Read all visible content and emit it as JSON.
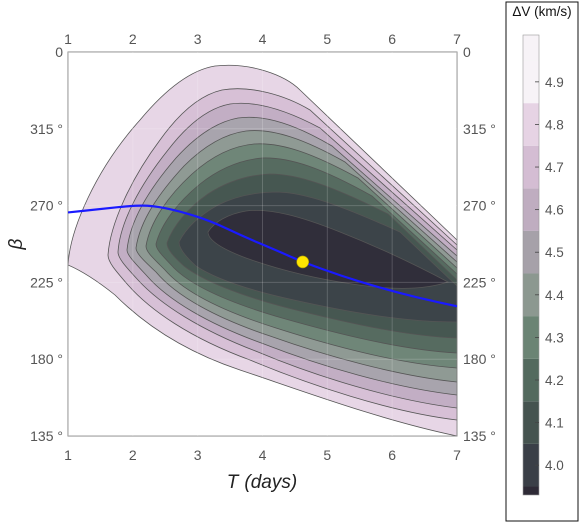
{
  "chart_data": {
    "type": "contour",
    "xlabel_symbol": "T",
    "xlabel_unit": "(days)",
    "ylabel": "β",
    "x_ticks": [
      "1",
      "2",
      "3",
      "4",
      "5",
      "6",
      "7"
    ],
    "y_ticks": [
      "135 °",
      "180 °",
      "225 °",
      "270 °",
      "315 °",
      "0"
    ],
    "xlim": [
      1,
      7
    ],
    "ylim": [
      135,
      360
    ],
    "colorbar": {
      "title": "ΔV (km/s)",
      "ticks": [
        "4.0",
        "4.1",
        "4.2",
        "4.3",
        "4.4",
        "4.5",
        "4.6",
        "4.7",
        "4.8",
        "4.9"
      ],
      "range": [
        3.93,
        5.01
      ]
    },
    "contour_levels": [
      4.0,
      4.1,
      4.2,
      4.3,
      4.4,
      4.5,
      4.6,
      4.7,
      4.8,
      4.9
    ],
    "optimum_point": {
      "x": 4.62,
      "y": 237,
      "color": "#ffe600"
    },
    "optimal_path": {
      "color": "#1a1aff",
      "points": [
        [
          1.0,
          266
        ],
        [
          1.5,
          268
        ],
        [
          2.0,
          270
        ],
        [
          2.3,
          270
        ],
        [
          2.7,
          267
        ],
        [
          3.2,
          261
        ],
        [
          3.7,
          252
        ],
        [
          4.2,
          244
        ],
        [
          4.62,
          237
        ],
        [
          5.2,
          229
        ],
        [
          5.8,
          222
        ],
        [
          6.4,
          216
        ],
        [
          7.0,
          211
        ]
      ]
    },
    "grid": true,
    "legend": "colorbar right"
  }
}
